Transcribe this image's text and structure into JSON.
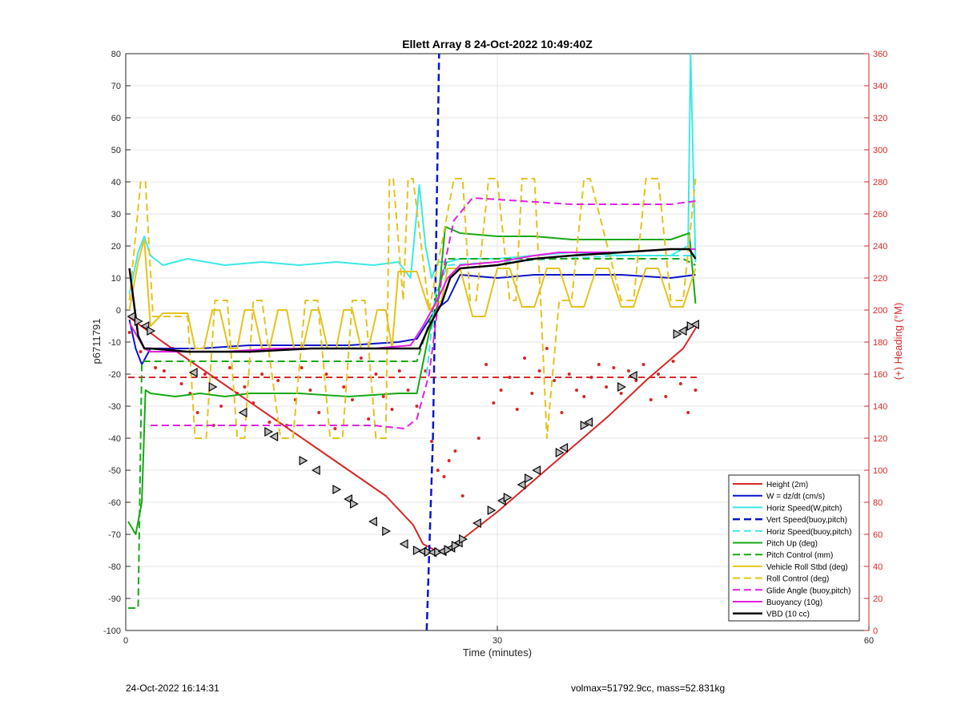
{
  "footer": {
    "date": "24-Oct-2022 16:14:31",
    "info": "volmax=51792.9cc, mass=52.831kg"
  },
  "chart_data": {
    "type": "line",
    "title": "Ellett Array 8 24-Oct-2022 10:49:40Z",
    "xlabel": "Time (minutes)",
    "ylabel": "p6711791",
    "y2label": "(+) Heading (°M)",
    "xlim": [
      0,
      60
    ],
    "ylim": [
      -100,
      80
    ],
    "y2lim": [
      0,
      360
    ],
    "xticks": [
      0,
      30,
      60
    ],
    "yticks": [
      -100,
      -90,
      -80,
      -70,
      -60,
      -50,
      -40,
      -30,
      -20,
      -10,
      0,
      10,
      20,
      30,
      40,
      50,
      60,
      70,
      80
    ],
    "y2ticks": [
      0,
      20,
      40,
      60,
      80,
      100,
      120,
      140,
      160,
      180,
      200,
      220,
      240,
      260,
      280,
      300,
      320,
      340,
      360
    ],
    "grid": true,
    "legend_position": "bottom-right",
    "colors": {
      "axis": "#262626",
      "right_axis": "#d62728",
      "grid": "#e6e6e6"
    },
    "series": [
      {
        "name": "Height (2m)",
        "color": "#d62728",
        "dash": "solid",
        "width": 2,
        "x": [
          0.2,
          3,
          6,
          9,
          12,
          15,
          18,
          21,
          23.2,
          24,
          25,
          26,
          27,
          30,
          33,
          36,
          39,
          42,
          45,
          46.2
        ],
        "y": [
          -2,
          -10,
          -18,
          -26,
          -34,
          -42,
          -50,
          -58,
          -67,
          -73,
          -75,
          -75.5,
          -72,
          -63,
          -53,
          -43,
          -33,
          -22,
          -12,
          -4.5
        ]
      },
      {
        "name": "W = dz/dt (cm/s)",
        "color": "#0a15c8",
        "dash": "solid",
        "width": 2,
        "x": [
          0.3,
          0.8,
          1.3,
          2,
          4,
          6,
          10,
          14,
          18,
          22,
          23.5,
          24.5,
          25,
          26,
          27,
          30,
          33,
          36,
          40,
          44,
          46
        ],
        "y": [
          -3,
          -12,
          -17,
          -12,
          -12,
          -12,
          -11,
          -11,
          -11,
          -10,
          -9,
          -3,
          0,
          3,
          11,
          10,
          11,
          11,
          11,
          10,
          11
        ]
      },
      {
        "name": "Horiz Speed(W,pitch)",
        "color": "#3ce8e8",
        "dash": "solid",
        "width": 2,
        "x": [
          0.3,
          1.0,
          1.5,
          2,
          3,
          5,
          8,
          11,
          14,
          17,
          20,
          22,
          23,
          23.7,
          24.2,
          24.7,
          25.2,
          26,
          27,
          30,
          33,
          36,
          40,
          44,
          45.4,
          45.6,
          46
        ],
        "y": [
          5,
          18,
          23,
          17,
          14,
          16,
          14,
          15,
          14,
          15,
          14,
          15,
          10,
          39,
          20,
          10,
          15,
          15,
          16,
          16,
          17,
          18,
          17,
          17,
          20,
          80,
          15
        ]
      },
      {
        "name": "Vert Speed(buoy,pitch)",
        "color": "#0a15c8",
        "dash": "dashed",
        "width": 2.5,
        "x": [
          24.3,
          24.8,
          25.1,
          25.3
        ],
        "y": [
          -100,
          -40,
          30,
          80
        ]
      },
      {
        "name": "Horiz Speed(buoy,pitch)",
        "color": "#3ce8e8",
        "dash": "dashed",
        "width": 2,
        "x": [
          24.3,
          25,
          26,
          30,
          35,
          40,
          46
        ],
        "y": [
          -20,
          5,
          14,
          15,
          16,
          17,
          17
        ]
      },
      {
        "name": "Pitch Up (deg)",
        "color": "#17a817",
        "dash": "solid",
        "width": 2,
        "x": [
          0.2,
          0.8,
          1.3,
          1.6,
          2,
          4,
          6,
          8,
          10,
          14,
          18,
          22,
          23.5,
          24.5,
          25.2,
          25.8,
          27,
          30,
          33,
          36,
          40,
          44,
          45.5,
          46
        ],
        "y": [
          -66,
          -70,
          -60,
          -25,
          -26,
          -27,
          -26,
          -27,
          -26,
          -26,
          -27,
          -26,
          -26,
          -7,
          2,
          26,
          24,
          23,
          23,
          22,
          22,
          22,
          24,
          2
        ]
      },
      {
        "name": "Pitch Control (mm)",
        "color": "#17a817",
        "dash": "dashed",
        "width": 2,
        "x": [
          0.2,
          1.0,
          1.3,
          2,
          8,
          15,
          22,
          23.5,
          24.5,
          25.5,
          26,
          30,
          35,
          40,
          45,
          46
        ],
        "y": [
          -93,
          -93,
          -16,
          -16,
          -16,
          -16,
          -16,
          -16,
          -4,
          10,
          16,
          16,
          16,
          16,
          16,
          14
        ]
      },
      {
        "name": "Vehicle Roll Stbd (deg)",
        "color": "#e5c21d",
        "dash": "solid",
        "width": 2,
        "x": [
          0.3,
          1.0,
          1.5,
          2.0,
          3,
          5,
          5.6,
          6.3,
          7,
          7.6,
          8.3,
          9,
          9.6,
          10.3,
          11,
          11.6,
          12.3,
          13,
          13.6,
          14.3,
          15,
          15.6,
          16.3,
          17,
          17.6,
          18.3,
          19,
          19.6,
          20.3,
          21,
          21.5,
          22,
          23.5,
          24.5,
          25.5,
          26,
          27,
          28,
          29,
          30,
          31,
          32,
          33,
          34,
          35,
          36,
          37,
          38,
          39,
          40,
          41,
          42,
          43,
          44,
          45,
          46
        ],
        "y": [
          0,
          15,
          22,
          -5,
          -1,
          -1,
          -12,
          -12,
          0,
          0,
          -12,
          -12,
          0,
          0,
          -12,
          -12,
          0,
          0,
          -12,
          -12,
          0,
          0,
          -12,
          -12,
          0,
          0,
          -12,
          -12,
          0,
          0,
          -12,
          12,
          12,
          0,
          3,
          13,
          13,
          -2,
          -2,
          13,
          13,
          1,
          1,
          13,
          13,
          1,
          1,
          13,
          13,
          1,
          1,
          13,
          13,
          1,
          1,
          13
        ]
      },
      {
        "name": "Roll Control (deg)",
        "color": "#e5c21d",
        "dash": "dashed",
        "width": 2,
        "x": [
          0.3,
          1.2,
          1.6,
          2.2,
          4,
          5,
          5.6,
          6.5,
          7.2,
          8.2,
          9,
          9.6,
          10.3,
          11,
          12.5,
          13.5,
          14.5,
          15.5,
          16.5,
          17.5,
          18.3,
          19.3,
          20.2,
          21,
          21.3,
          21.6,
          22.4,
          22.8,
          23.2,
          24.5,
          26.5,
          27.2,
          27.8,
          28.3,
          29.3,
          30,
          31,
          31.5,
          32,
          33,
          33.5,
          34,
          35,
          36,
          37,
          37.5,
          40,
          41,
          42,
          43,
          44,
          45,
          46
        ],
        "y": [
          3,
          40,
          40,
          -2,
          -2,
          -2,
          -40,
          -40,
          3,
          3,
          -40,
          -40,
          3,
          3,
          -40,
          -40,
          3,
          3,
          -40,
          -40,
          3,
          3,
          -40,
          -40,
          41,
          41,
          3,
          41,
          41,
          0,
          41,
          41,
          3,
          3,
          41,
          41,
          3,
          3,
          41,
          41,
          3,
          -40,
          3,
          3,
          41,
          41,
          3,
          3,
          41,
          41,
          3,
          3,
          41
        ]
      },
      {
        "name": "Glide Angle (buoy,pitch)",
        "color": "#e020e0",
        "dash": "dashed",
        "width": 2,
        "x": [
          2,
          8,
          14,
          20,
          22.5,
          23.5,
          24.5,
          25.5,
          26.5,
          28,
          32,
          36,
          40,
          44,
          46
        ],
        "y": [
          -36,
          -36,
          -36,
          -36,
          -37,
          -34,
          -20,
          10,
          28,
          35,
          34,
          33,
          33,
          33,
          34
        ]
      },
      {
        "name": "Buoyancy (10g)",
        "color": "#e020e0",
        "dash": "solid",
        "width": 2,
        "x": [
          0.3,
          1.5,
          2,
          5,
          8,
          12,
          16,
          20,
          23,
          24,
          25,
          26,
          27,
          30,
          33,
          35,
          40,
          44,
          46
        ],
        "y": [
          -4,
          -12,
          -13,
          -13,
          -13,
          -12,
          -12,
          -12,
          -11,
          -5,
          2,
          10,
          14,
          15,
          17,
          18,
          18,
          19,
          19
        ]
      },
      {
        "name": "VBD (10 cc)",
        "color": "#000000",
        "dash": "solid",
        "width": 2.5,
        "x": [
          0.3,
          1.0,
          1.5,
          2,
          5,
          10,
          15,
          20,
          23,
          23.7,
          24.5,
          25.5,
          26.2,
          27,
          30,
          33,
          36,
          40,
          44,
          45.5,
          46
        ],
        "y": [
          13,
          -8,
          -12,
          -12,
          -13,
          -13,
          -12,
          -12,
          -12,
          -12,
          -5,
          2,
          10,
          13,
          14,
          16,
          17,
          18,
          19,
          19,
          16
        ]
      }
    ],
    "heading_dashed": {
      "y2": 158,
      "x": [
        0.2,
        46.3
      ]
    },
    "heading_points": {
      "x": [
        0.3,
        1.2,
        2.4,
        3.1,
        3.8,
        4.5,
        5.2,
        5.8,
        6.4,
        7.1,
        7.7,
        8.4,
        9.0,
        9.6,
        10.3,
        11.0,
        11.6,
        12.3,
        13.0,
        13.7,
        14.2,
        14.9,
        15.6,
        16.2,
        16.9,
        17.6,
        18.3,
        19.0,
        19.6,
        20.2,
        20.8,
        21.5,
        22.1,
        22.8,
        23.5,
        24.2,
        24.7,
        25.2,
        25.7,
        26.1,
        26.6,
        27.2,
        28.5,
        29.1,
        29.7,
        30.3,
        31.0,
        31.6,
        32.2,
        32.8,
        33.4,
        34.0,
        34.6,
        35.2,
        35.8,
        36.4,
        37.0,
        37.6,
        38.2,
        38.8,
        39.4,
        40.0,
        40.6,
        41.2,
        41.8,
        42.4,
        43.0,
        43.6,
        44.2,
        44.8,
        45.4,
        46.0
      ],
      "y2": [
        186,
        174,
        164,
        162,
        176,
        154,
        148,
        136,
        160,
        128,
        140,
        164,
        148,
        152,
        142,
        160,
        130,
        156,
        128,
        144,
        164,
        150,
        136,
        160,
        126,
        152,
        144,
        170,
        132,
        160,
        146,
        138,
        162,
        150,
        140,
        162,
        118,
        100,
        96,
        106,
        112,
        84,
        120,
        166,
        142,
        150,
        158,
        138,
        170,
        148,
        162,
        176,
        156,
        136,
        160,
        150,
        146,
        158,
        166,
        152,
        164,
        148,
        162,
        156,
        166,
        144,
        160,
        146,
        168,
        154,
        136,
        150
      ]
    },
    "markers": {
      "x": [
        0.5,
        1.0,
        1.6,
        2.0,
        5.5,
        7,
        9.5,
        11.5,
        12,
        14.3,
        15.4,
        17,
        18,
        18.4,
        20,
        21,
        22.5,
        23.5,
        24.0,
        24.4,
        24.8,
        25.2,
        25.6,
        26.0,
        26.3,
        26.6,
        26.9,
        27.2,
        28.4,
        29.5,
        30.4,
        30.8,
        32.0,
        32.5,
        33.2,
        35.0,
        35.4,
        37.0,
        37.4,
        40.0,
        41.0,
        44.5,
        45.0,
        45.6,
        46.0
      ],
      "y": [
        -2,
        -3.5,
        -5,
        -6.5,
        -19.5,
        -24,
        -32,
        -38,
        -39.5,
        -47,
        -50,
        -56,
        -59,
        -60.5,
        -66,
        -69,
        -73,
        -75,
        -75.3,
        -75.5,
        -75.6,
        -75.5,
        -75.3,
        -74.8,
        -74.2,
        -73.5,
        -72.6,
        -71.5,
        -66.5,
        -62.5,
        -59.5,
        -58.5,
        -54.5,
        -52.5,
        -50,
        -44.5,
        -43,
        -36,
        -35,
        -24,
        -20.5,
        -7.5,
        -6.5,
        -5,
        -4.5
      ]
    }
  }
}
